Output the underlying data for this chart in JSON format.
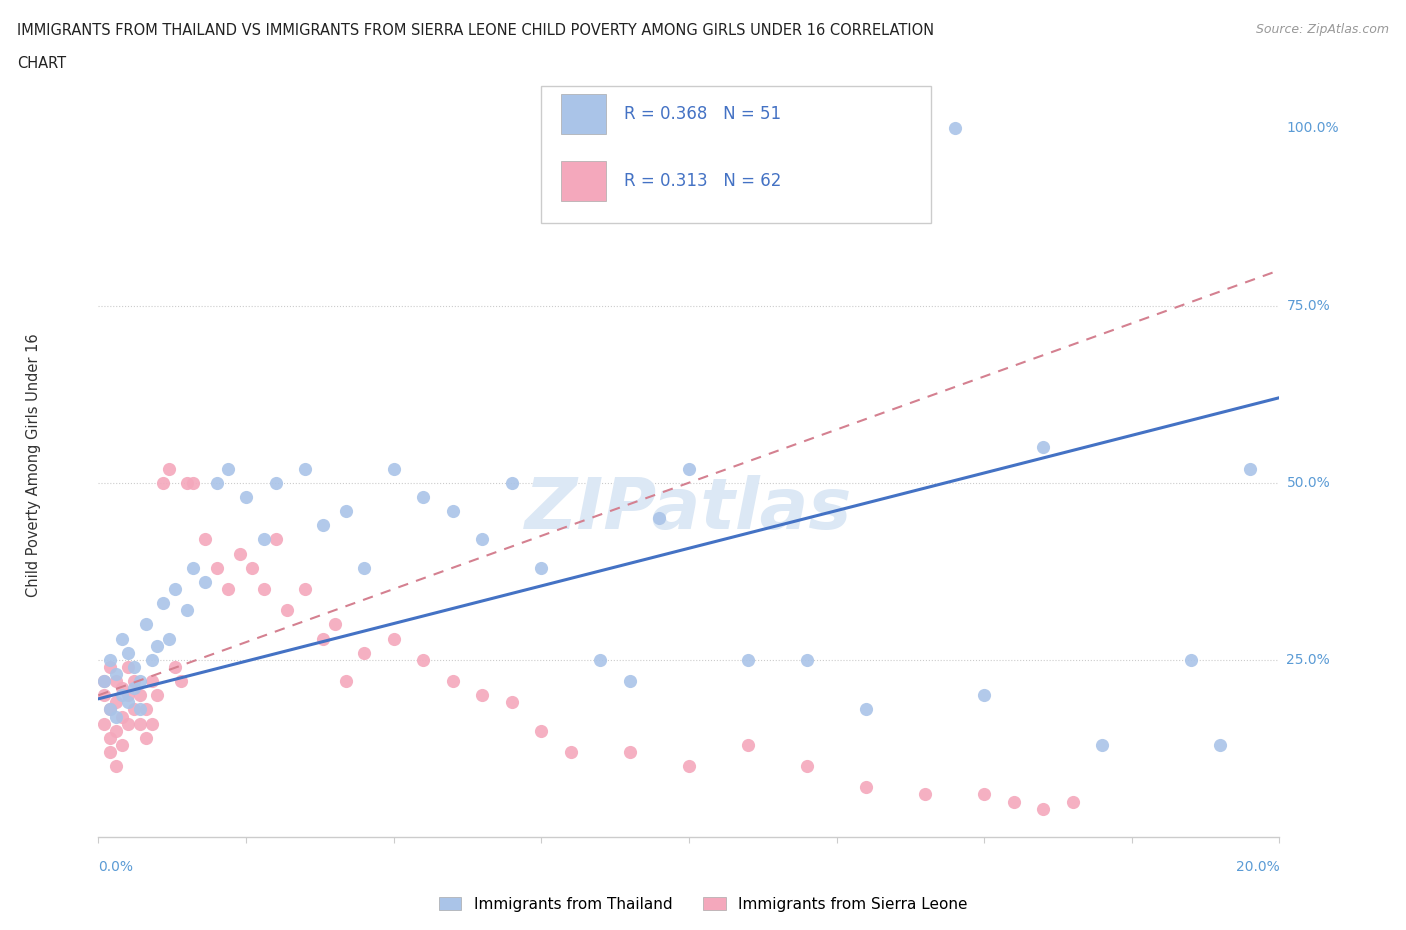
{
  "title_line1": "IMMIGRANTS FROM THAILAND VS IMMIGRANTS FROM SIERRA LEONE CHILD POVERTY AMONG GIRLS UNDER 16 CORRELATION",
  "title_line2": "CHART",
  "source": "Source: ZipAtlas.com",
  "ylabel": "Child Poverty Among Girls Under 16",
  "legend1_label": "Immigrants from Thailand",
  "legend2_label": "Immigrants from Sierra Leone",
  "R1": 0.368,
  "N1": 51,
  "R2": 0.313,
  "N2": 62,
  "color_thailand": "#aac4e8",
  "color_sierra": "#f4a8bc",
  "color_trend1": "#4472c4",
  "color_trend2": "#d48090",
  "xmin": 0.0,
  "xmax": 0.2,
  "ymin": 0.0,
  "ymax": 1.05,
  "thailand_x": [
    0.001,
    0.002,
    0.002,
    0.003,
    0.003,
    0.004,
    0.004,
    0.005,
    0.005,
    0.006,
    0.006,
    0.007,
    0.007,
    0.008,
    0.009,
    0.01,
    0.011,
    0.012,
    0.013,
    0.015,
    0.016,
    0.018,
    0.02,
    0.022,
    0.025,
    0.028,
    0.03,
    0.035,
    0.038,
    0.042,
    0.045,
    0.05,
    0.055,
    0.06,
    0.065,
    0.07,
    0.075,
    0.085,
    0.09,
    0.095,
    0.1,
    0.11,
    0.12,
    0.13,
    0.15,
    0.16,
    0.17,
    0.185,
    0.19,
    0.195,
    0.145
  ],
  "thailand_y": [
    0.22,
    0.18,
    0.25,
    0.17,
    0.23,
    0.2,
    0.28,
    0.19,
    0.26,
    0.21,
    0.24,
    0.18,
    0.22,
    0.3,
    0.25,
    0.27,
    0.33,
    0.28,
    0.35,
    0.32,
    0.38,
    0.36,
    0.5,
    0.52,
    0.48,
    0.42,
    0.5,
    0.52,
    0.44,
    0.46,
    0.38,
    0.52,
    0.48,
    0.46,
    0.42,
    0.5,
    0.38,
    0.25,
    0.22,
    0.45,
    0.52,
    0.25,
    0.25,
    0.18,
    0.2,
    0.55,
    0.13,
    0.25,
    0.13,
    0.52,
    1.0
  ],
  "sierra_x": [
    0.001,
    0.001,
    0.001,
    0.002,
    0.002,
    0.002,
    0.002,
    0.003,
    0.003,
    0.003,
    0.003,
    0.004,
    0.004,
    0.004,
    0.005,
    0.005,
    0.005,
    0.006,
    0.006,
    0.007,
    0.007,
    0.008,
    0.008,
    0.009,
    0.009,
    0.01,
    0.011,
    0.012,
    0.013,
    0.014,
    0.015,
    0.016,
    0.018,
    0.02,
    0.022,
    0.024,
    0.026,
    0.028,
    0.03,
    0.032,
    0.035,
    0.038,
    0.04,
    0.042,
    0.045,
    0.05,
    0.055,
    0.06,
    0.065,
    0.07,
    0.075,
    0.08,
    0.09,
    0.1,
    0.11,
    0.12,
    0.13,
    0.14,
    0.15,
    0.155,
    0.16,
    0.165
  ],
  "sierra_y": [
    0.2,
    0.16,
    0.22,
    0.18,
    0.14,
    0.24,
    0.12,
    0.19,
    0.15,
    0.22,
    0.1,
    0.17,
    0.21,
    0.13,
    0.2,
    0.16,
    0.24,
    0.18,
    0.22,
    0.16,
    0.2,
    0.18,
    0.14,
    0.22,
    0.16,
    0.2,
    0.5,
    0.52,
    0.24,
    0.22,
    0.5,
    0.5,
    0.42,
    0.38,
    0.35,
    0.4,
    0.38,
    0.35,
    0.42,
    0.32,
    0.35,
    0.28,
    0.3,
    0.22,
    0.26,
    0.28,
    0.25,
    0.22,
    0.2,
    0.19,
    0.15,
    0.12,
    0.12,
    0.1,
    0.13,
    0.1,
    0.07,
    0.06,
    0.06,
    0.05,
    0.04,
    0.05
  ],
  "trend1_x0": 0.0,
  "trend1_y0": 0.195,
  "trend1_x1": 0.2,
  "trend1_y1": 0.62,
  "trend2_x0": 0.0,
  "trend2_y0": 0.2,
  "trend2_x1": 0.2,
  "trend2_y1": 0.8
}
